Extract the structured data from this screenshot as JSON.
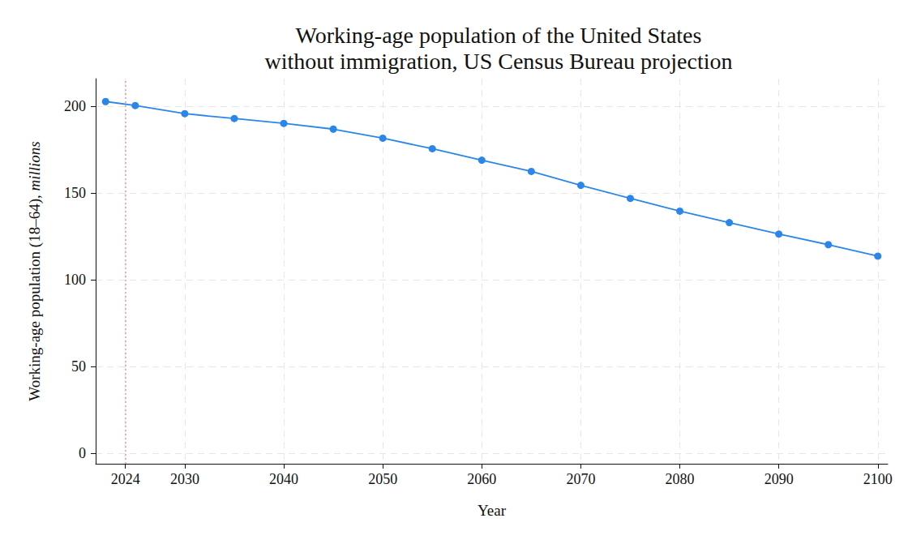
{
  "chart_data": {
    "type": "line",
    "title": "Working-age population of the United States\nwithout immigration, US Census Bureau projection",
    "x_label": "Year",
    "y_label": "Working-age population (18–64), millions",
    "x": [
      2022,
      2025,
      2030,
      2035,
      2040,
      2045,
      2050,
      2055,
      2060,
      2065,
      2070,
      2075,
      2080,
      2085,
      2090,
      2095,
      2100
    ],
    "values": [
      202.8,
      200.5,
      195.8,
      193.0,
      190.2,
      186.9,
      181.7,
      175.6,
      169.0,
      162.5,
      154.5,
      147.0,
      139.6,
      133.0,
      126.4,
      120.3,
      113.7
    ],
    "color": "#2a86e8",
    "marker": "circle",
    "line_style": "solid",
    "xlim": [
      2021,
      2101
    ],
    "xticks": [
      2024,
      2030,
      2040,
      2050,
      2060,
      2070,
      2080,
      2090,
      2100
    ],
    "ylim": [
      -6,
      216
    ],
    "yticks": [
      0,
      50,
      100,
      150,
      200
    ],
    "grid": true,
    "reference_line": {
      "x": 2024,
      "color": "#e39a9a",
      "line_style": "dotted"
    }
  }
}
